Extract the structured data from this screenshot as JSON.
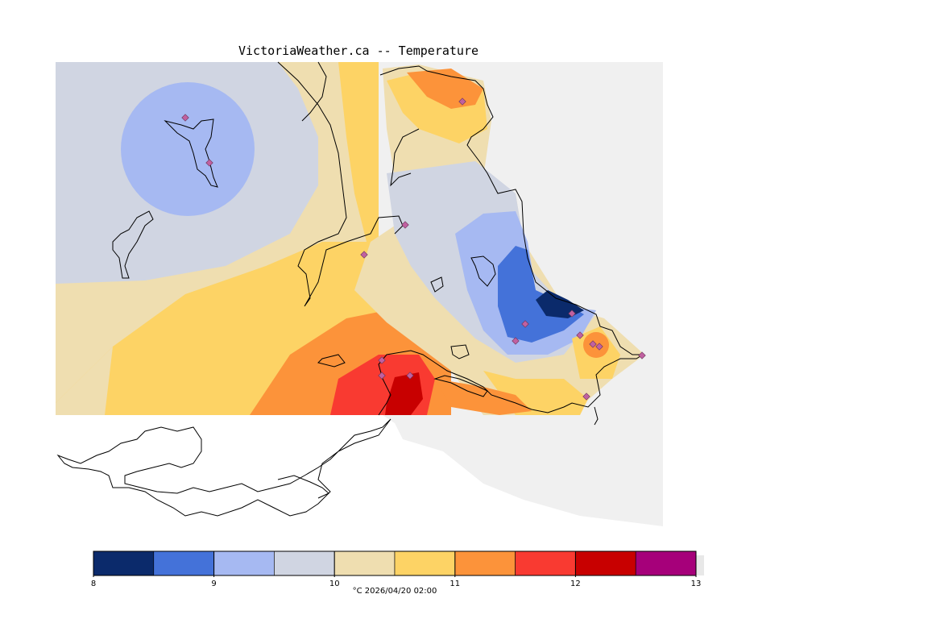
{
  "title": "VictoriaWeather.ca -- Temperature",
  "legend": {
    "bands": [
      {
        "from": 8.0,
        "to": 8.5,
        "color": "#0b2a6b"
      },
      {
        "from": 8.5,
        "to": 9.0,
        "color": "#4472d9"
      },
      {
        "from": 9.0,
        "to": 9.5,
        "color": "#a6b9f2"
      },
      {
        "from": 9.5,
        "to": 10.0,
        "color": "#d0d5e2"
      },
      {
        "from": 10.0,
        "to": 10.5,
        "color": "#efdeb0"
      },
      {
        "from": 10.5,
        "to": 11.0,
        "color": "#fdd365"
      },
      {
        "from": 11.0,
        "to": 11.5,
        "color": "#fc933a"
      },
      {
        "from": 11.5,
        "to": 12.0,
        "color": "#f93a31"
      },
      {
        "from": 12.0,
        "to": 12.5,
        "color": "#c80000"
      },
      {
        "from": 12.5,
        "to": 13.0,
        "color": "#a6007a"
      }
    ],
    "ticks": [
      "8",
      "9",
      "10",
      "11",
      "12",
      "13"
    ],
    "caption": "°C  2026/04/20 02:00"
  },
  "colors": {
    "background": "#f0f0f0",
    "station_marker": "#c060a0"
  },
  "stations_count": 16
}
